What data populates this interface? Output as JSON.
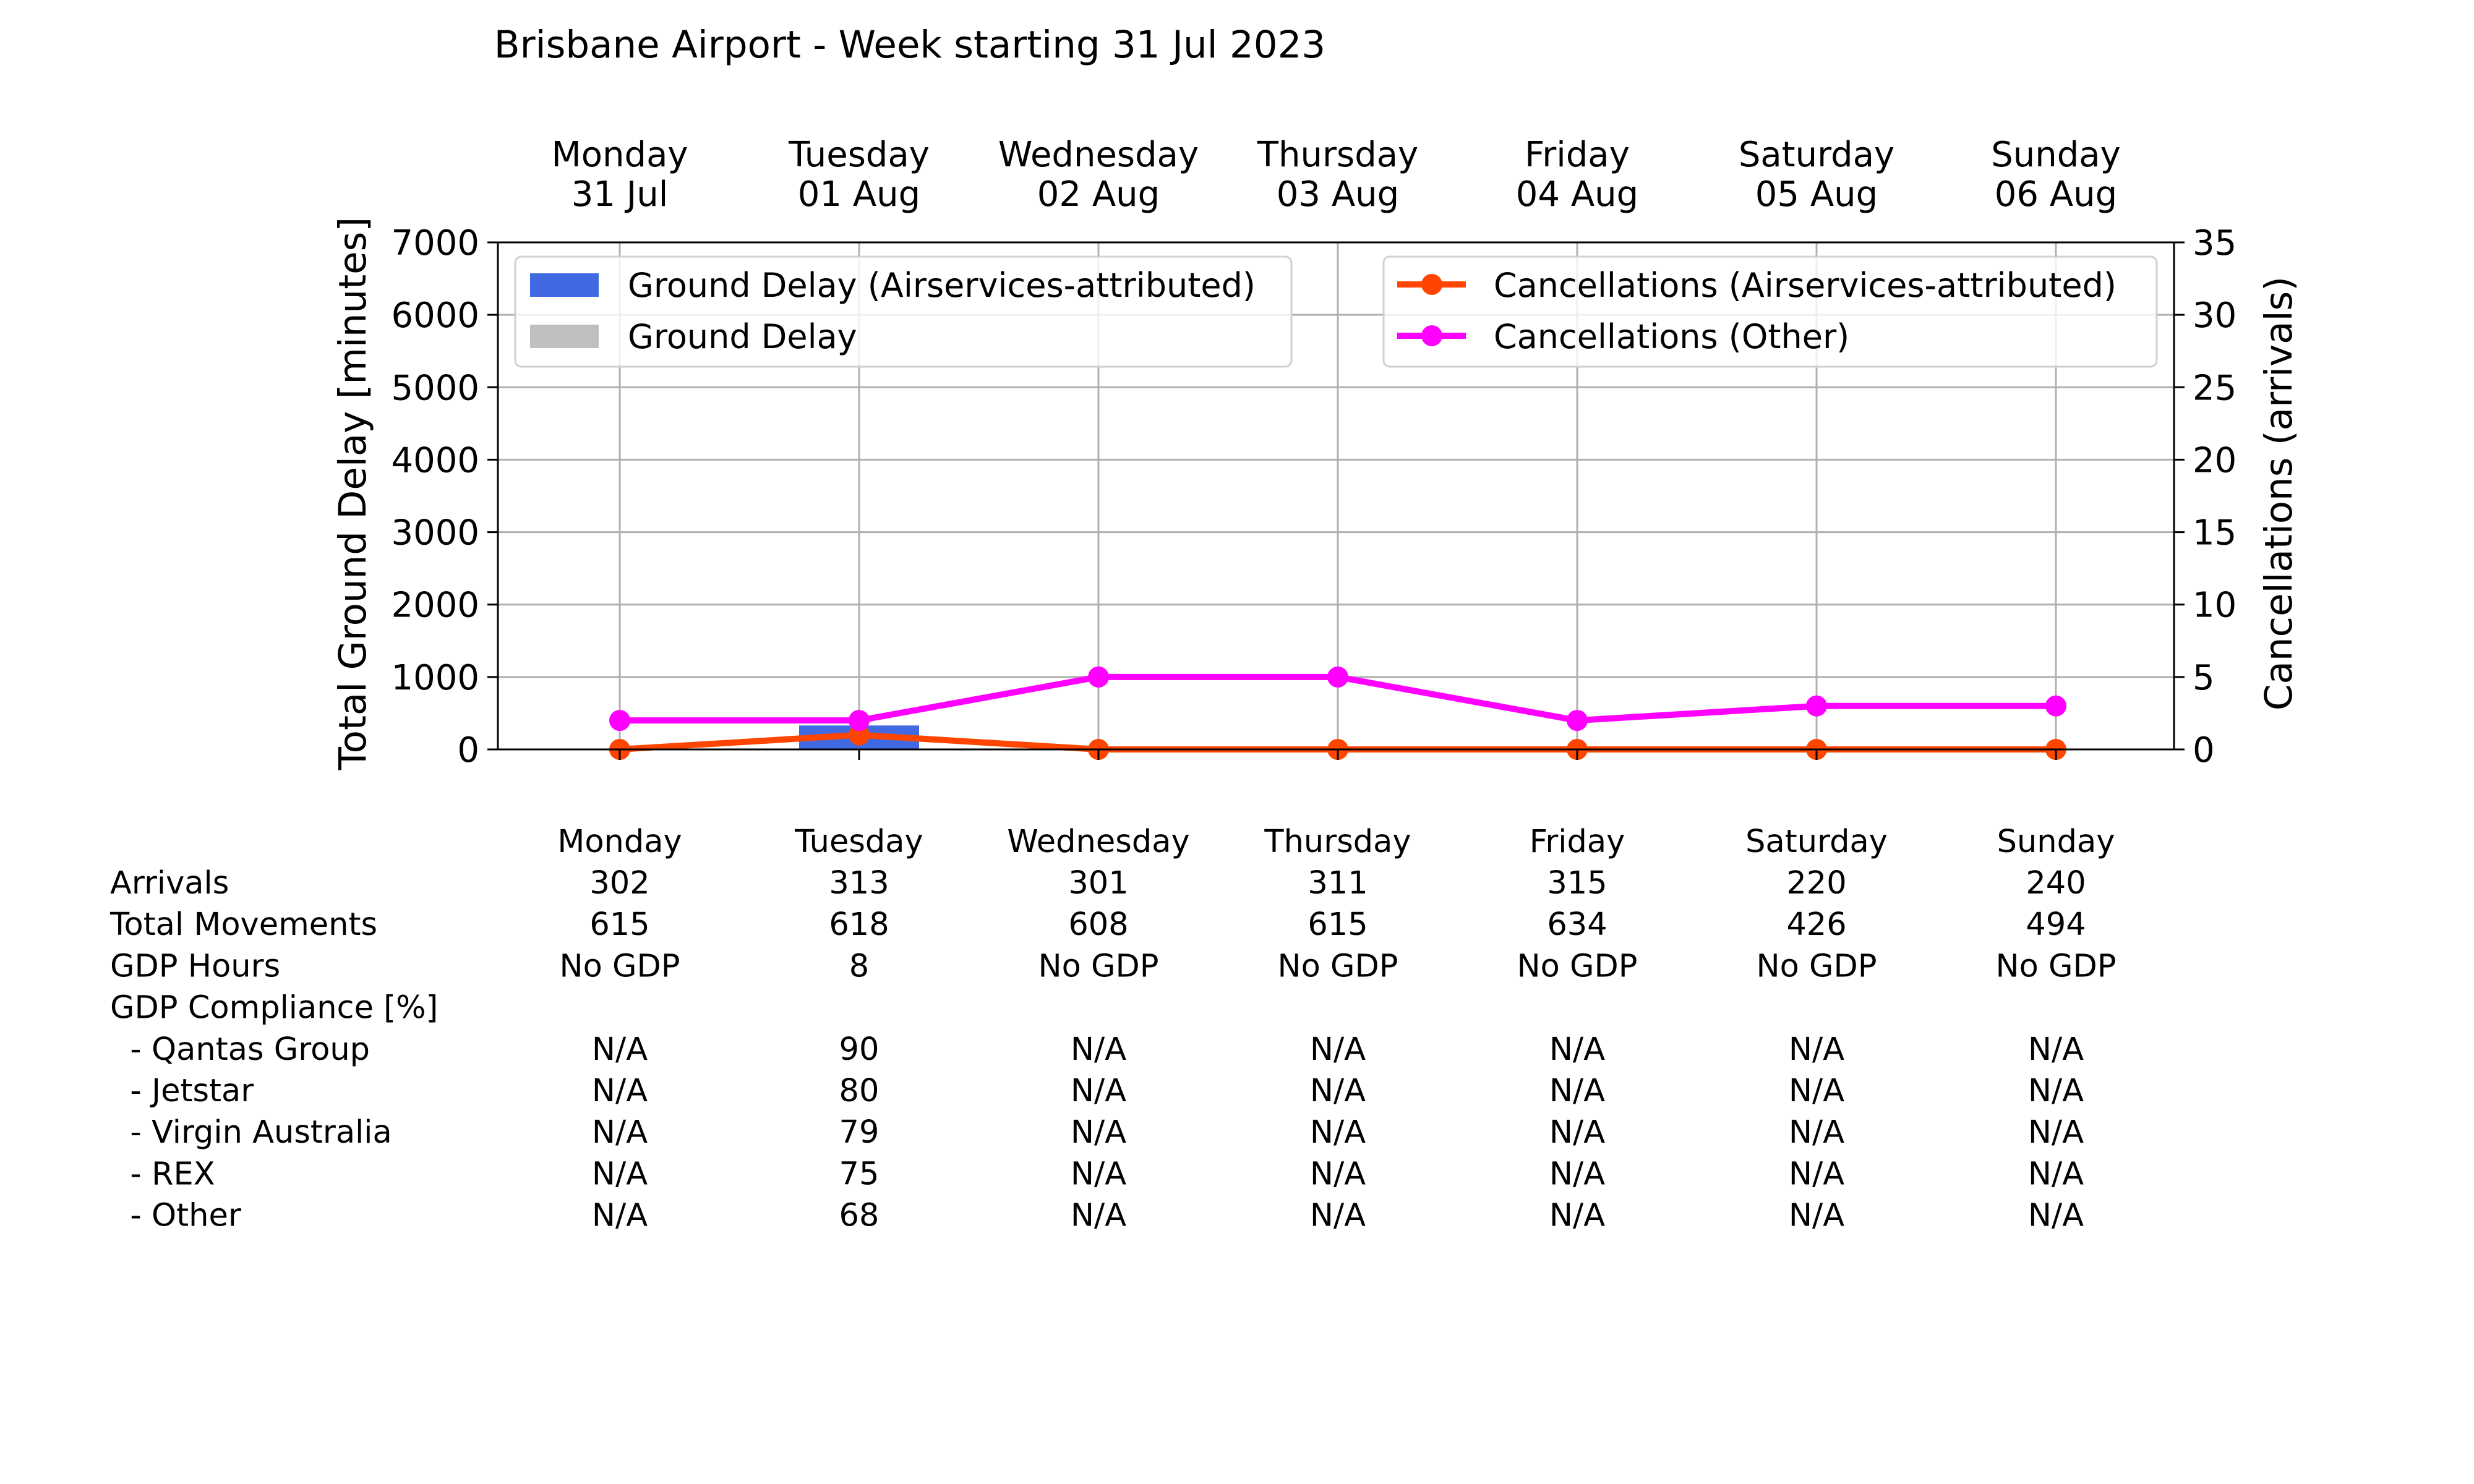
{
  "chart_data": {
    "type": "bar",
    "title": "Brisbane Airport - Week starting 31 Jul 2023",
    "days": [
      {
        "name": "Monday",
        "date": "31 Jul"
      },
      {
        "name": "Tuesday",
        "date": "01 Aug"
      },
      {
        "name": "Wednesday",
        "date": "02 Aug"
      },
      {
        "name": "Thursday",
        "date": "03 Aug"
      },
      {
        "name": "Friday",
        "date": "04 Aug"
      },
      {
        "name": "Saturday",
        "date": "05 Aug"
      },
      {
        "name": "Sunday",
        "date": "06 Aug"
      }
    ],
    "ylabel_left": "Total Ground Delay [minutes]",
    "ylabel_right": "Cancellations (arrivals)",
    "ylim_left": [
      0,
      7000
    ],
    "ylim_right": [
      0,
      35
    ],
    "yticks_left": [
      0,
      1000,
      2000,
      3000,
      4000,
      5000,
      6000,
      7000
    ],
    "yticks_right": [
      0,
      5,
      10,
      15,
      20,
      25,
      30,
      35
    ],
    "grid": true,
    "bar_series": [
      {
        "name": "Ground Delay (Airservices-attributed)",
        "color": "#4169e1",
        "values": [
          0,
          330,
          0,
          0,
          0,
          0,
          0
        ]
      },
      {
        "name": "Ground Delay",
        "color": "#bfbfbf",
        "values": [
          0,
          330,
          0,
          0,
          0,
          0,
          0
        ]
      }
    ],
    "line_series": [
      {
        "name": "Cancellations (Airservices-attributed)",
        "color": "#ff4500",
        "values": [
          0,
          1,
          0,
          0,
          0,
          0,
          0
        ]
      },
      {
        "name": "Cancellations (Other)",
        "color": "#ff00ff",
        "values": [
          2,
          2,
          5,
          5,
          2,
          3,
          3
        ]
      }
    ],
    "legend_left_placement": "upper-left",
    "legend_right_placement": "upper-right"
  },
  "table": {
    "header": [
      "Monday",
      "Tuesday",
      "Wednesday",
      "Thursday",
      "Friday",
      "Saturday",
      "Sunday"
    ],
    "rows": [
      {
        "label": "Arrivals",
        "values": [
          "302",
          "313",
          "301",
          "311",
          "315",
          "220",
          "240"
        ]
      },
      {
        "label": "Total Movements",
        "values": [
          "615",
          "618",
          "608",
          "615",
          "634",
          "426",
          "494"
        ]
      },
      {
        "label": "GDP Hours",
        "values": [
          "No GDP",
          "8",
          "No GDP",
          "No GDP",
          "No GDP",
          "No GDP",
          "No GDP"
        ]
      },
      {
        "label": "GDP Compliance [%]",
        "values": [
          "",
          "",
          "",
          "",
          "",
          "",
          ""
        ]
      },
      {
        "label": "  - Qantas Group",
        "values": [
          "N/A",
          "90",
          "N/A",
          "N/A",
          "N/A",
          "N/A",
          "N/A"
        ]
      },
      {
        "label": "  - Jetstar",
        "values": [
          "N/A",
          "80",
          "N/A",
          "N/A",
          "N/A",
          "N/A",
          "N/A"
        ]
      },
      {
        "label": "  - Virgin Australia",
        "values": [
          "N/A",
          "79",
          "N/A",
          "N/A",
          "N/A",
          "N/A",
          "N/A"
        ]
      },
      {
        "label": "  - REX",
        "values": [
          "N/A",
          "75",
          "N/A",
          "N/A",
          "N/A",
          "N/A",
          "N/A"
        ]
      },
      {
        "label": "  - Other",
        "values": [
          "N/A",
          "68",
          "N/A",
          "N/A",
          "N/A",
          "N/A",
          "N/A"
        ]
      }
    ]
  }
}
